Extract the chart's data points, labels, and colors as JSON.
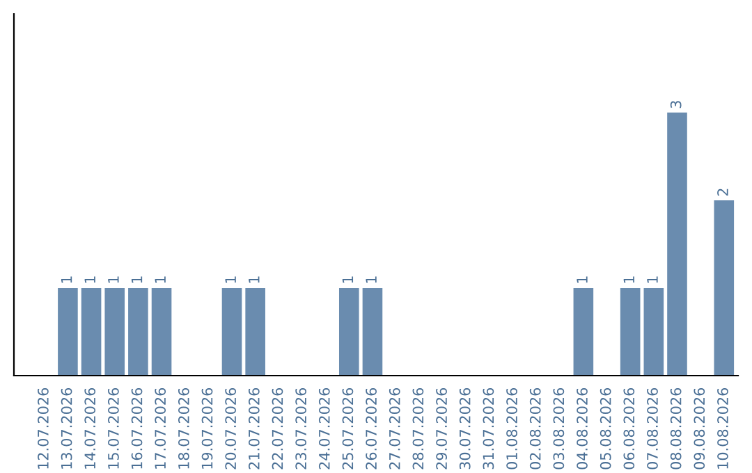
{
  "chart_data": {
    "type": "bar",
    "categories": [
      "12.07.2026",
      "13.07.2026",
      "14.07.2026",
      "15.07.2026",
      "16.07.2026",
      "17.07.2026",
      "18.07.2026",
      "19.07.2026",
      "20.07.2026",
      "21.07.2026",
      "22.07.2026",
      "23.07.2026",
      "24.07.2026",
      "25.07.2026",
      "26.07.2026",
      "27.07.2026",
      "28.07.2026",
      "29.07.2026",
      "30.07.2026",
      "31.07.2026",
      "01.08.2026",
      "02.08.2026",
      "03.08.2026",
      "04.08.2026",
      "05.08.2026",
      "06.08.2026",
      "07.08.2026",
      "08.08.2026",
      "09.08.2026",
      "10.08.2026"
    ],
    "values": [
      0,
      1,
      1,
      1,
      1,
      1,
      0,
      0,
      1,
      1,
      0,
      0,
      0,
      1,
      1,
      0,
      0,
      0,
      0,
      0,
      0,
      0,
      0,
      1,
      0,
      1,
      1,
      3,
      0,
      2
    ],
    "value_labels": [
      null,
      "1",
      "1",
      "1",
      "1",
      "1",
      null,
      null,
      "1",
      "1",
      null,
      null,
      null,
      "1",
      "1",
      null,
      null,
      null,
      null,
      null,
      null,
      null,
      null,
      "1",
      null,
      "1",
      "1",
      "3",
      null,
      "2"
    ],
    "color": "#6a8caf",
    "grid": false,
    "legend": false
  }
}
